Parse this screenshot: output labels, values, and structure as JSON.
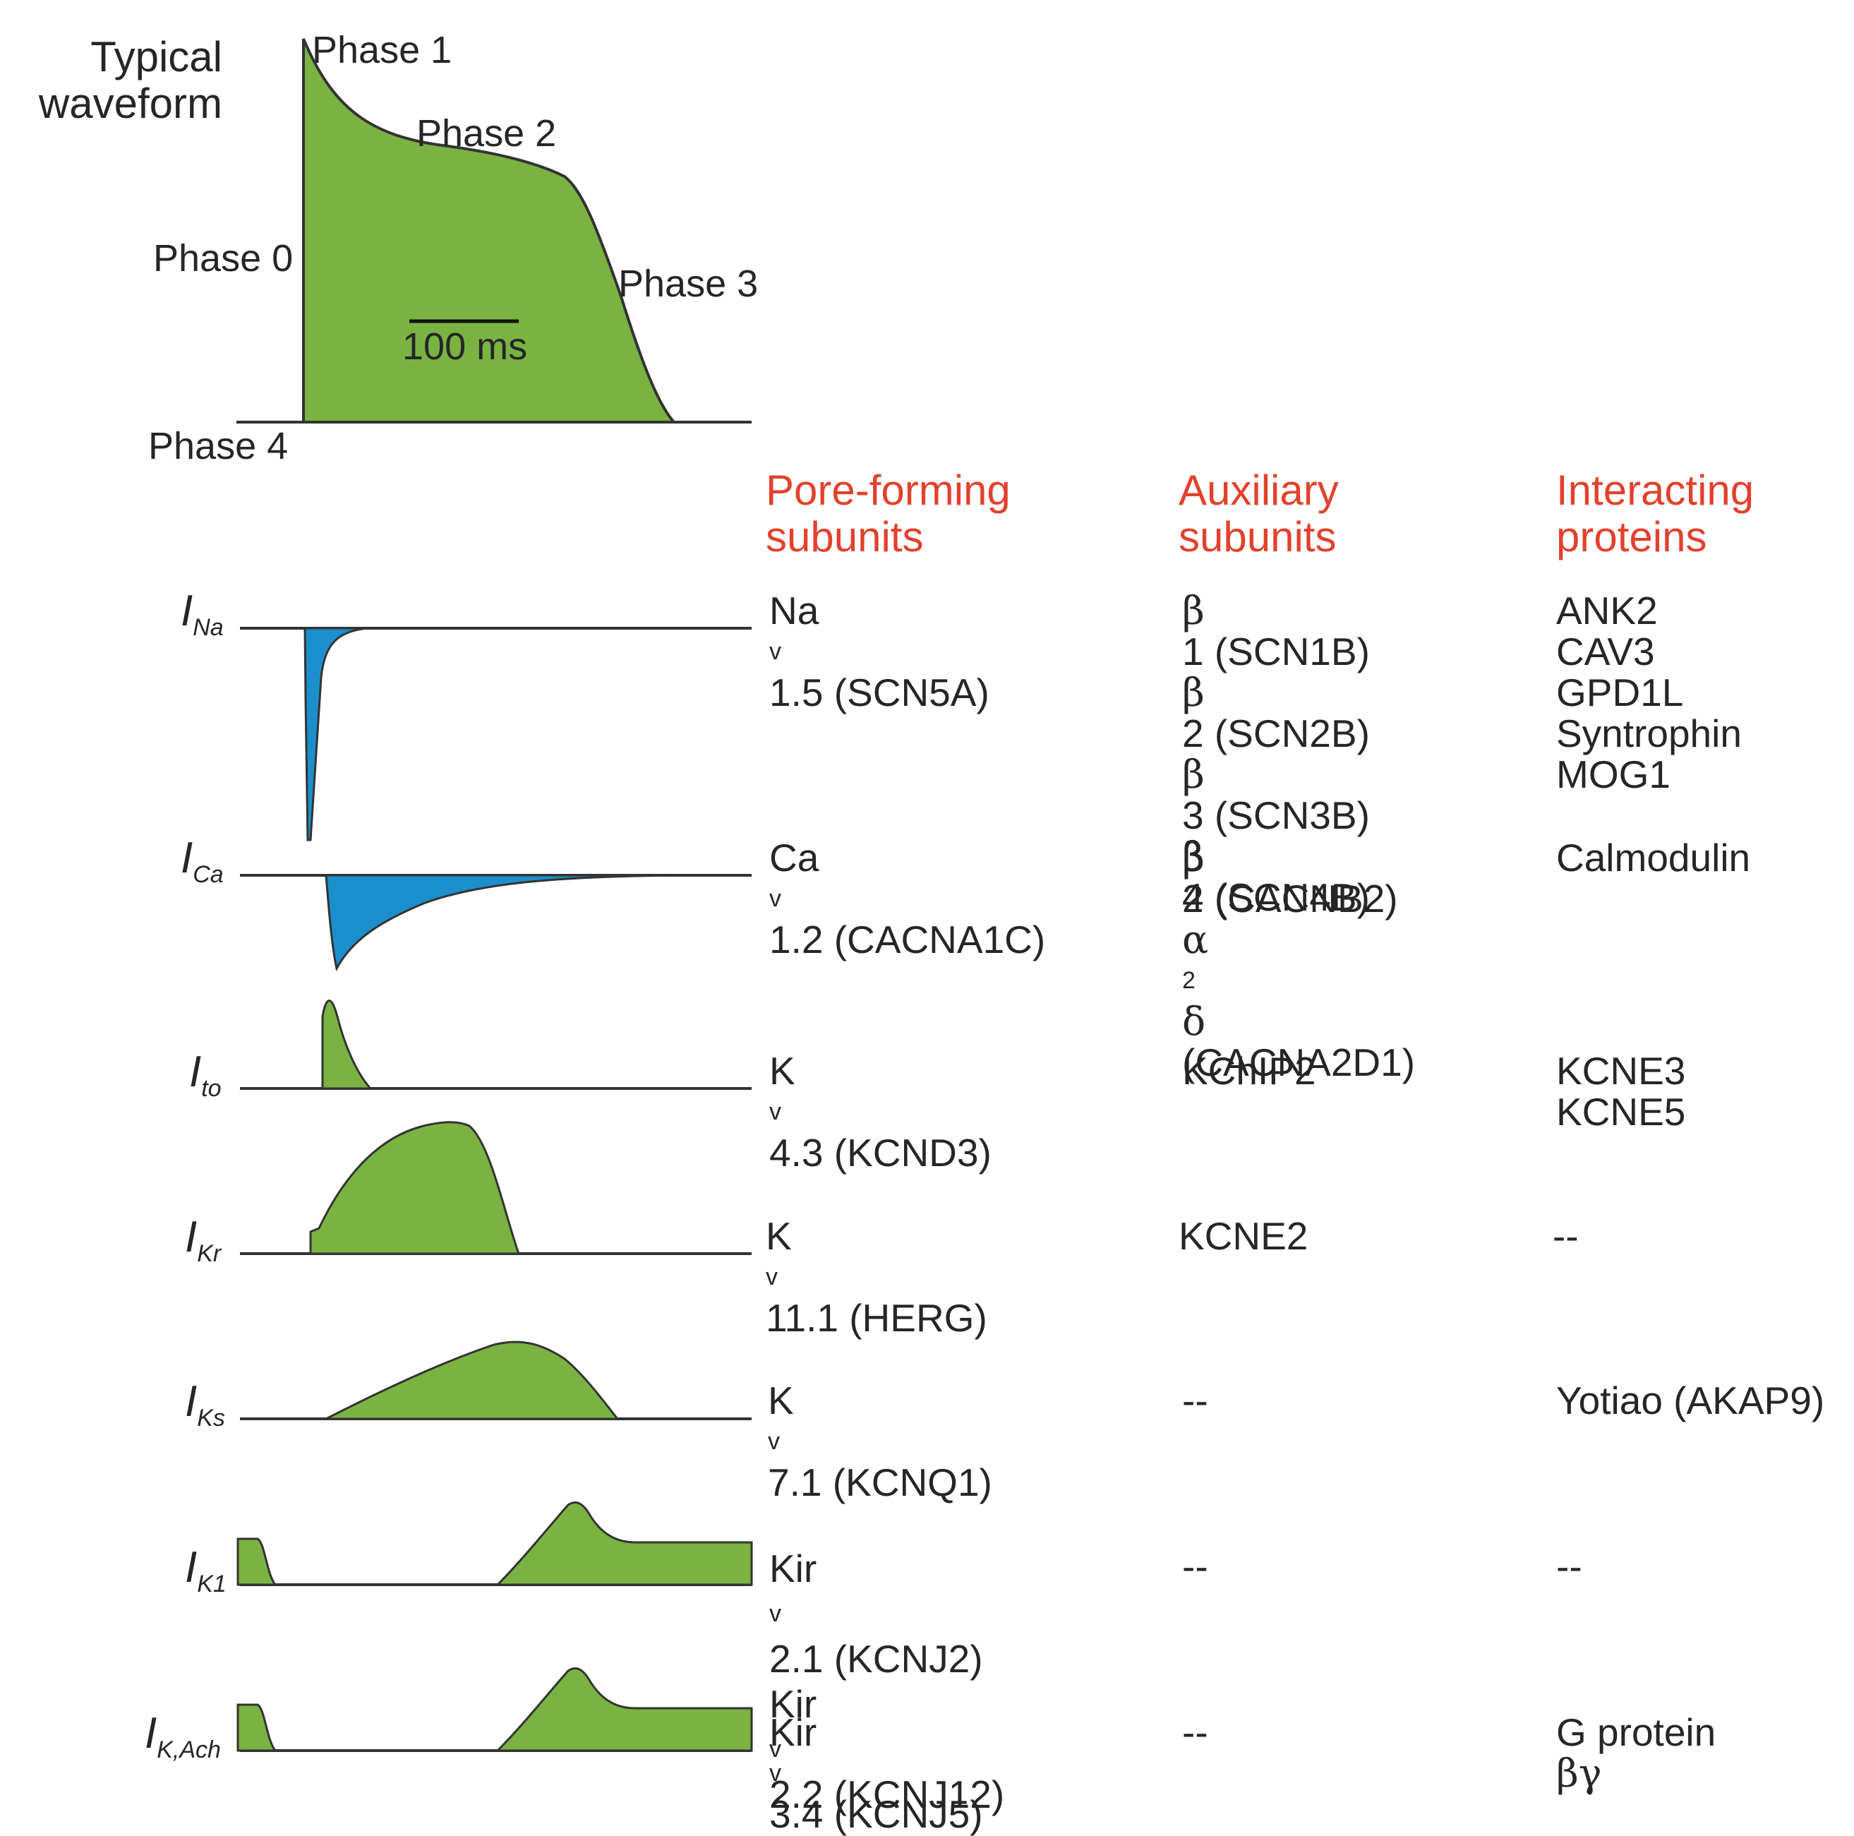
{
  "waveform": {
    "title_line1": "Typical",
    "title_line2": "waveform",
    "phase0": "Phase 0",
    "phase1": "Phase 1",
    "phase2": "Phase 2",
    "phase3": "Phase 3",
    "phase4": "Phase 4",
    "scale_bar": "100 ms"
  },
  "headers": {
    "pore_line1": "Pore-forming",
    "pore_line2": "subunits",
    "aux_line1": "Auxiliary",
    "aux_line2": "subunits",
    "inter_line1": "Interacting",
    "inter_line2": "proteins"
  },
  "rows": [
    {
      "current": {
        "letter": "I",
        "sub": "Na"
      },
      "pore": [
        {
          "prefix": "Na",
          "sub": "v",
          "rest": "1.5 (SCN5A)"
        }
      ],
      "aux": [
        {
          "sym": "β",
          "rest": "1 (SCN1B)"
        },
        {
          "sym": "β",
          "rest": "2 (SCN2B)"
        },
        {
          "sym": "β",
          "rest": "3 (SCN3B)"
        },
        {
          "sym": "β",
          "rest": "4 (SCN4B)"
        }
      ],
      "interacting": [
        "ANK2",
        "CAV3",
        "GPD1L",
        "Syntrophin",
        "MOG1"
      ]
    },
    {
      "current": {
        "letter": "I",
        "sub": "Ca"
      },
      "pore": [
        {
          "prefix": "Ca",
          "sub": "v",
          "rest": "1.2 (CACNA1C)"
        }
      ],
      "aux": [
        {
          "sym": "β",
          "rest": "2 (CACNB2)"
        },
        {
          "sym": "α",
          "sub": "2",
          "sym2": "δ",
          "rest": " (CACNA2D1)"
        }
      ],
      "interacting": [
        "Calmodulin"
      ]
    },
    {
      "current": {
        "letter": "I",
        "sub": "to"
      },
      "pore": [
        {
          "prefix": "K",
          "sub": "v",
          "rest": "4.3 (KCND3)"
        }
      ],
      "aux": [
        "KChIP2"
      ],
      "interacting": [
        "KCNE3",
        "KCNE5"
      ]
    },
    {
      "current": {
        "letter": "I",
        "sub": "Kr"
      },
      "pore": [
        {
          "prefix": "K",
          "sub": "v",
          "rest": "11.1 (HERG)"
        }
      ],
      "aux": [
        "KCNE2"
      ],
      "interacting": [
        "--"
      ]
    },
    {
      "current": {
        "letter": "I",
        "sub": "Ks"
      },
      "pore": [
        {
          "prefix": "K",
          "sub": "v",
          "rest": "7.1 (KCNQ1)"
        }
      ],
      "aux": [
        "--"
      ],
      "interacting": [
        "Yotiao (AKAP9)"
      ]
    },
    {
      "current": {
        "letter": "I",
        "sub": "K1"
      },
      "pore": [
        {
          "prefix": "Kir",
          "sub": "v",
          "rest": "2.1 (KCNJ2)"
        },
        {
          "prefix": "Kir",
          "sub": "v",
          "rest": "2.2 (KCNJ12)"
        }
      ],
      "aux": [
        "--"
      ],
      "interacting": [
        "--"
      ]
    },
    {
      "current": {
        "letter": "I",
        "sub": "K,Ach"
      },
      "pore": [
        {
          "prefix": "Kir",
          "sub": "v",
          "rest": "3.4 (KCNJ5)"
        }
      ],
      "aux": [
        "--"
      ],
      "interacting": [
        {
          "text": "G protein ",
          "sym": "βγ"
        }
      ]
    }
  ],
  "colors": {
    "outward_fill": "#7ab342",
    "inward_fill": "#1b8fcb",
    "header_text": "#e2412c",
    "axis_line": "#333333"
  }
}
